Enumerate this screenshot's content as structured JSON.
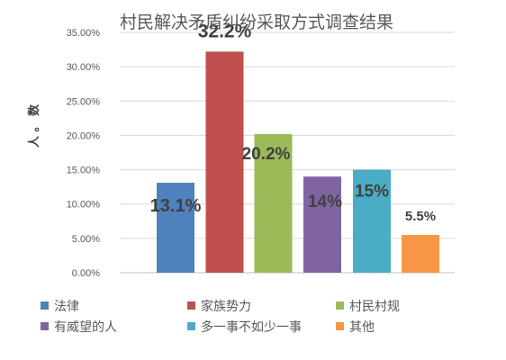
{
  "chart_data": {
    "type": "bar",
    "title": "村民解决矛盾纠纷采取方式调查结果",
    "xlabel": "",
    "ylabel": "人 。 数",
    "ylim": [
      0,
      35
    ],
    "yticks": [
      "0.00%",
      "5.00%",
      "10.00%",
      "15.00%",
      "20.00%",
      "25.00%",
      "30.00%",
      "35.00%"
    ],
    "grid": true,
    "legend_position": "bottom",
    "categories": [
      "法律",
      "家族势力",
      "村民村规",
      "有威望的人",
      "多一事不如少一事",
      "其他"
    ],
    "series": [
      {
        "name": "法律",
        "value": 13.1,
        "label": "13.1%",
        "color": "#4f81bd"
      },
      {
        "name": "家族势力",
        "value": 32.2,
        "label": "32.2%",
        "color": "#c0504d"
      },
      {
        "name": "村民村规",
        "value": 20.2,
        "label": "20.2%",
        "color": "#9bbb59"
      },
      {
        "name": "有威望的人",
        "value": 14,
        "label": "14%",
        "color": "#8064a2"
      },
      {
        "name": "多一事不如少一事",
        "value": 15,
        "label": "15%",
        "color": "#4bacc6"
      },
      {
        "name": "其他",
        "value": 5.5,
        "label": "5.5%",
        "color": "#f79646"
      }
    ]
  }
}
